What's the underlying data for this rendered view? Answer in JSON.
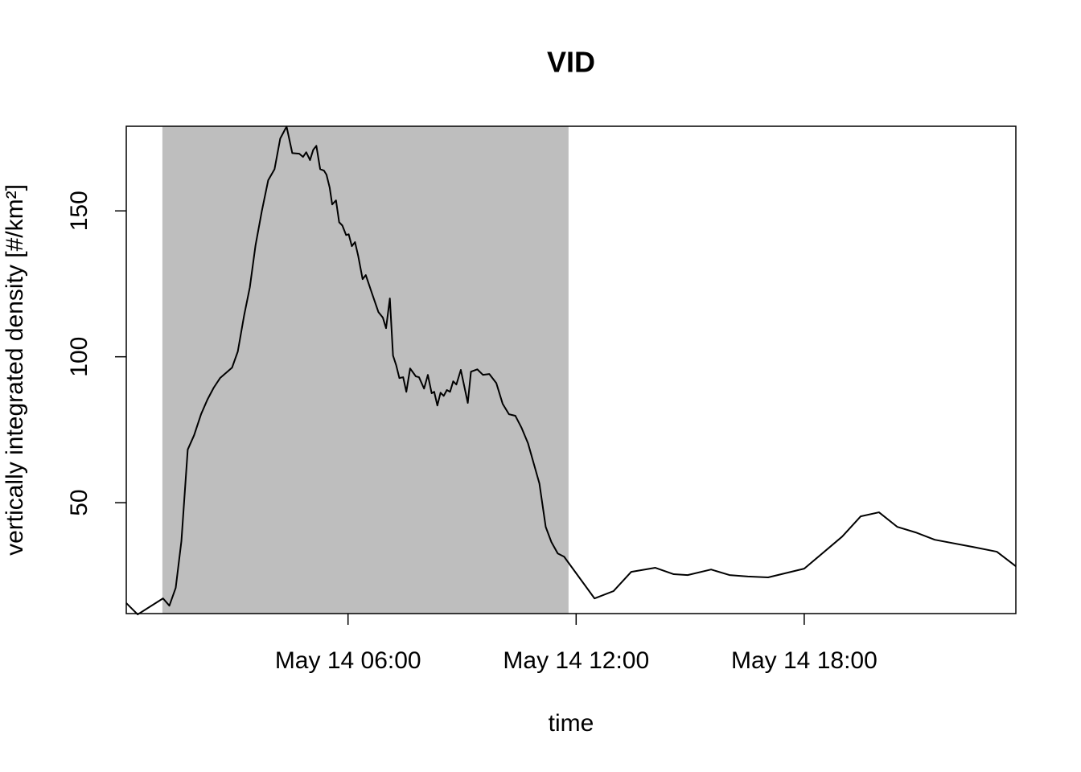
{
  "chart_data": {
    "type": "line",
    "title": "VID",
    "x_label": "time",
    "y_label": "vertically integrated density [#/km²]",
    "x": [
      "May 14 00:10",
      "May 14 00:28",
      "May 14 01:08",
      "May 14 01:18",
      "May 14 01:28",
      "May 14 01:37",
      "May 14 01:47",
      "May 14 01:57",
      "May 14 02:08",
      "May 14 02:18",
      "May 14 02:28",
      "May 14 02:38",
      "May 14 02:57",
      "May 14 03:06",
      "May 14 03:16",
      "May 14 03:25",
      "May 14 03:34",
      "May 14 03:44",
      "May 14 03:54",
      "May 14 04:04",
      "May 14 04:13",
      "May 14 04:23",
      "May 14 04:32",
      "May 14 04:43",
      "May 14 04:49",
      "May 14 04:54",
      "May 14 05:00",
      "May 14 05:05",
      "May 14 05:10",
      "May 14 05:16",
      "May 14 05:22",
      "May 14 05:26",
      "May 14 05:31",
      "May 14 05:35",
      "May 14 05:41",
      "May 14 05:46",
      "May 14 05:51",
      "May 14 05:57",
      "May 14 06:01",
      "May 14 06:06",
      "May 14 06:11",
      "May 14 06:16",
      "May 14 06:23",
      "May 14 06:28",
      "May 14 06:38",
      "May 14 06:48",
      "May 14 06:55",
      "May 14 07:00",
      "May 14 07:06",
      "May 14 07:11",
      "May 14 07:16",
      "May 14 07:21",
      "May 14 07:27",
      "May 14 07:32",
      "May 14 07:38",
      "May 14 07:47",
      "May 14 07:52",
      "May 14 08:00",
      "May 14 08:06",
      "May 14 08:12",
      "May 14 08:16",
      "May 14 08:21",
      "May 14 08:26",
      "May 14 08:31",
      "May 14 08:36",
      "May 14 08:41",
      "May 14 08:46",
      "May 14 08:51",
      "May 14 08:58",
      "May 14 09:09",
      "May 14 09:14",
      "May 14 09:24",
      "May 14 09:33",
      "May 14 09:43",
      "May 14 09:54",
      "May 14 10:04",
      "May 14 10:14",
      "May 14 10:24",
      "May 14 10:34",
      "May 14 10:44",
      "May 14 10:53",
      "May 14 11:02",
      "May 14 11:12",
      "May 14 11:21",
      "May 14 11:31",
      "May 14 11:41",
      "May 14 12:29",
      "May 14 12:59",
      "May 14 13:27",
      "May 14 14:05",
      "May 14 14:34",
      "May 14 14:56",
      "May 14 15:33",
      "May 14 16:02",
      "May 14 16:31",
      "May 14 17:03",
      "May 14 18:00",
      "May 14 19:00",
      "May 14 19:29",
      "May 14 19:58",
      "May 14 20:27",
      "May 14 20:56",
      "May 14 21:26",
      "May 14 22:27",
      "May 14 23:04",
      "May 14 23:34"
    ],
    "series": [
      {
        "name": "VID",
        "color": "#000000",
        "values": [
          15.6,
          11.7,
          17.2,
          14.7,
          20.8,
          36.8,
          68.2,
          73.1,
          80.3,
          85.3,
          89.4,
          92.7,
          96.3,
          101.8,
          114.2,
          123.8,
          138.2,
          150,
          160.5,
          164.3,
          174.8,
          178.9,
          169.8,
          169.6,
          168.5,
          170.1,
          167.4,
          170.9,
          172.3,
          164.3,
          163.8,
          162.4,
          158,
          152.2,
          153.6,
          146.1,
          145.0,
          141.7,
          142,
          137.9,
          139.3,
          134.6,
          126.6,
          128,
          121.6,
          115.3,
          113.4,
          109.8,
          120,
          100.4,
          97.1,
          92.7,
          93,
          88,
          96,
          93.3,
          93,
          89.1,
          93.8,
          87.5,
          88,
          83.3,
          87.7,
          86.6,
          88.6,
          88,
          91.6,
          90.5,
          95.5,
          84.2,
          94.9,
          95.7,
          93.8,
          94.1,
          91,
          83.9,
          80.3,
          79.8,
          75.6,
          70.4,
          63.5,
          56.6,
          41.7,
          36.5,
          32.6,
          31.5,
          17.2,
          19.7,
          26.3,
          27.7,
          25.5,
          25.2,
          27.1,
          25.2,
          24.7,
          24.4,
          27.4,
          38.4,
          45.3,
          46.7,
          41.7,
          39.8,
          37.3,
          34.8,
          33.2,
          28.2
        ]
      }
    ],
    "shaded": [
      "May 14 01:07",
      "May 14 11:48"
    ],
    "shade_color": "#bebebe",
    "xlim": [
      "May 14 00:10",
      "May 14 23:34"
    ],
    "xticks": [
      "May 14 06:00",
      "May 14 12:00",
      "May 14 18:00"
    ],
    "ylim": [
      12,
      179
    ],
    "yticks": [
      50,
      100,
      150
    ]
  }
}
